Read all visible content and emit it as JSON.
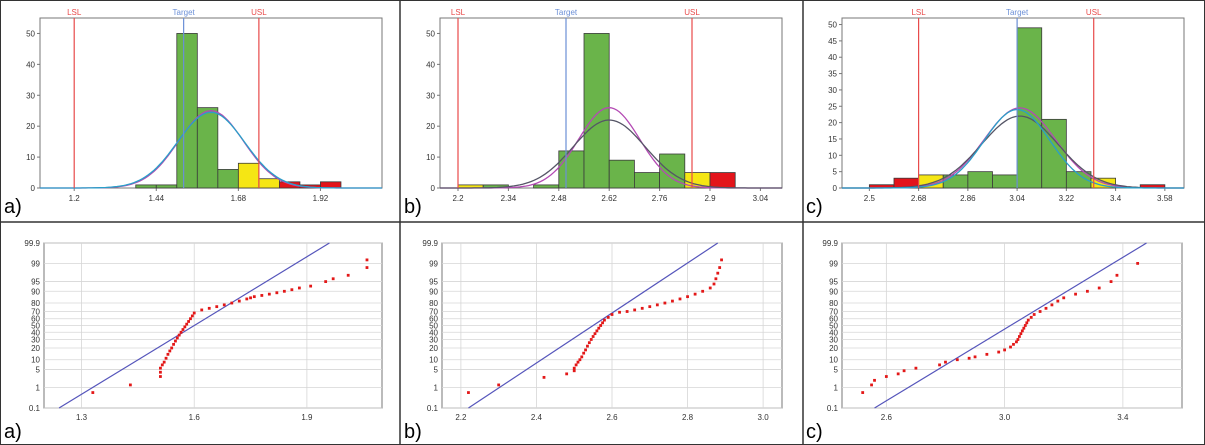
{
  "colors": {
    "ok": "#6ab44a",
    "warn": "#f5e614",
    "bad": "#e3141b",
    "limit_line": "#e84a4a",
    "target_line": "#6b8fd6",
    "fit_purple": "#b44ab4",
    "fit_gray": "#555566",
    "fit_teal": "#2a9fc8",
    "prob_line": "#5555bb",
    "prob_point": "#e31818"
  },
  "panel_labels": [
    "a)",
    "b)",
    "c)",
    "a)",
    "b)",
    "c)"
  ],
  "chart_data": [
    {
      "type": "bar",
      "panel": "a)",
      "xlim": [
        1.1,
        2.1
      ],
      "ylim": [
        0,
        55
      ],
      "x_ticks": [
        1.2,
        1.44,
        1.68,
        1.92
      ],
      "x_tick_labels": [
        "1.2",
        "1.44",
        "1.68",
        "1.92"
      ],
      "y_ticks": [
        0,
        10,
        20,
        30,
        40,
        50
      ],
      "y_tick_labels": [
        "0",
        "10",
        "20",
        "30",
        "40",
        "50"
      ],
      "bin_width": 0.06,
      "bins": [
        {
          "x": 1.38,
          "value": 1,
          "zone": "ok"
        },
        {
          "x": 1.44,
          "value": 1,
          "zone": "ok"
        },
        {
          "x": 1.5,
          "value": 50,
          "zone": "ok"
        },
        {
          "x": 1.56,
          "value": 26,
          "zone": "ok"
        },
        {
          "x": 1.62,
          "value": 6,
          "zone": "ok"
        },
        {
          "x": 1.68,
          "value": 8,
          "zone": "warn"
        },
        {
          "x": 1.74,
          "value": 3,
          "zone": "warn"
        },
        {
          "x": 1.8,
          "value": 2,
          "zone": "bad"
        },
        {
          "x": 1.86,
          "value": 1,
          "zone": "bad"
        },
        {
          "x": 1.92,
          "value": 2,
          "zone": "bad"
        }
      ],
      "markers": [
        {
          "label": "LSL",
          "x": 1.2,
          "kind": "limit"
        },
        {
          "label": "Target",
          "x": 1.52,
          "kind": "target"
        },
        {
          "label": "USL",
          "x": 1.74,
          "kind": "limit"
        }
      ],
      "fit_curves": [
        {
          "mean": 1.6,
          "sd": 0.095,
          "peak": 25,
          "color": "fit_purple"
        },
        {
          "mean": 1.6,
          "sd": 0.098,
          "peak": 24.5,
          "color": "fit_teal"
        }
      ]
    },
    {
      "type": "bar",
      "panel": "b)",
      "xlim": [
        2.15,
        3.1
      ],
      "ylim": [
        0,
        55
      ],
      "x_ticks": [
        2.2,
        2.34,
        2.48,
        2.62,
        2.76,
        2.9,
        3.04
      ],
      "x_tick_labels": [
        "2.2",
        "2.34",
        "2.48",
        "2.62",
        "2.76",
        "2.9",
        "3.04"
      ],
      "y_ticks": [
        0,
        10,
        20,
        30,
        40,
        50
      ],
      "y_tick_labels": [
        "0",
        "10",
        "20",
        "30",
        "40",
        "50"
      ],
      "bin_width": 0.07,
      "bins": [
        {
          "x": 2.2,
          "value": 1,
          "zone": "warn"
        },
        {
          "x": 2.27,
          "value": 1,
          "zone": "ok"
        },
        {
          "x": 2.41,
          "value": 1,
          "zone": "ok"
        },
        {
          "x": 2.48,
          "value": 12,
          "zone": "ok"
        },
        {
          "x": 2.55,
          "value": 50,
          "zone": "ok"
        },
        {
          "x": 2.62,
          "value": 9,
          "zone": "ok"
        },
        {
          "x": 2.69,
          "value": 5,
          "zone": "ok"
        },
        {
          "x": 2.76,
          "value": 11,
          "zone": "ok"
        },
        {
          "x": 2.83,
          "value": 5,
          "zone": "warn"
        },
        {
          "x": 2.9,
          "value": 5,
          "zone": "bad"
        }
      ],
      "markers": [
        {
          "label": "LSL",
          "x": 2.2,
          "kind": "limit"
        },
        {
          "label": "Target",
          "x": 2.5,
          "kind": "target"
        },
        {
          "label": "USL",
          "x": 2.85,
          "kind": "limit"
        }
      ],
      "fit_curves": [
        {
          "mean": 2.62,
          "sd": 0.085,
          "peak": 26,
          "color": "fit_purple"
        },
        {
          "mean": 2.62,
          "sd": 0.1,
          "peak": 22,
          "color": "fit_gray"
        }
      ]
    },
    {
      "type": "bar",
      "panel": "c)",
      "xlim": [
        2.4,
        3.65
      ],
      "ylim": [
        0,
        52
      ],
      "x_ticks": [
        2.5,
        2.68,
        2.86,
        3.04,
        3.22,
        3.4,
        3.58
      ],
      "x_tick_labels": [
        "2.5",
        "2.68",
        "2.86",
        "3.04",
        "3.22",
        "3.4",
        "3.58"
      ],
      "y_ticks": [
        0,
        5,
        10,
        15,
        20,
        25,
        30,
        35,
        40,
        45,
        50
      ],
      "y_tick_labels": [
        "0",
        "5",
        "10",
        "15",
        "20",
        "25",
        "30",
        "35",
        "40",
        "45",
        "50"
      ],
      "bin_width": 0.09,
      "bins": [
        {
          "x": 2.5,
          "value": 1,
          "zone": "bad"
        },
        {
          "x": 2.59,
          "value": 3,
          "zone": "bad"
        },
        {
          "x": 2.68,
          "value": 4,
          "zone": "warn"
        },
        {
          "x": 2.77,
          "value": 4,
          "zone": "ok"
        },
        {
          "x": 2.86,
          "value": 5,
          "zone": "ok"
        },
        {
          "x": 2.95,
          "value": 4,
          "zone": "ok"
        },
        {
          "x": 3.04,
          "value": 49,
          "zone": "ok"
        },
        {
          "x": 3.13,
          "value": 21,
          "zone": "ok"
        },
        {
          "x": 3.22,
          "value": 5,
          "zone": "ok"
        },
        {
          "x": 3.31,
          "value": 3,
          "zone": "warn"
        },
        {
          "x": 3.49,
          "value": 1,
          "zone": "bad"
        }
      ],
      "markers": [
        {
          "label": "LSL",
          "x": 2.68,
          "kind": "limit"
        },
        {
          "label": "Target",
          "x": 3.04,
          "kind": "target"
        },
        {
          "label": "USL",
          "x": 3.32,
          "kind": "limit"
        }
      ],
      "fit_curves": [
        {
          "mean": 3.05,
          "sd": 0.13,
          "peak": 24.5,
          "color": "fit_purple"
        },
        {
          "mean": 3.05,
          "sd": 0.14,
          "peak": 22,
          "color": "fit_gray"
        },
        {
          "mean": 3.04,
          "sd": 0.12,
          "peak": 24,
          "color": "fit_teal"
        }
      ]
    },
    {
      "type": "scatter",
      "panel": "a)",
      "y_scale": "normal-probability",
      "xlim": [
        1.2,
        2.1
      ],
      "x_ticks": [
        1.3,
        1.6,
        1.9
      ],
      "x_tick_labels": [
        "1.3",
        "1.6",
        "1.9"
      ],
      "y_ticks": [
        0.1,
        1,
        5,
        10,
        20,
        30,
        40,
        50,
        60,
        70,
        80,
        90,
        95,
        99,
        99.9
      ],
      "y_tick_labels": [
        "0.1",
        "1",
        "5",
        "10",
        "20",
        "30",
        "40",
        "50",
        "60",
        "70",
        "80",
        "90",
        "95",
        "99",
        "99.9"
      ],
      "fit_line": [
        [
          1.24,
          0.1
        ],
        [
          1.96,
          99.9
        ]
      ],
      "points": [
        [
          1.33,
          0.6
        ],
        [
          1.43,
          1.3
        ],
        [
          1.51,
          2.8
        ],
        [
          1.51,
          4
        ],
        [
          1.51,
          5.5
        ],
        [
          1.515,
          7
        ],
        [
          1.52,
          8.5
        ],
        [
          1.525,
          11
        ],
        [
          1.53,
          14
        ],
        [
          1.535,
          17
        ],
        [
          1.54,
          20
        ],
        [
          1.545,
          24
        ],
        [
          1.55,
          28
        ],
        [
          1.555,
          32
        ],
        [
          1.56,
          36
        ],
        [
          1.565,
          40
        ],
        [
          1.57,
          44
        ],
        [
          1.575,
          48
        ],
        [
          1.58,
          52
        ],
        [
          1.585,
          56
        ],
        [
          1.59,
          60
        ],
        [
          1.595,
          64
        ],
        [
          1.6,
          68
        ],
        [
          1.62,
          72
        ],
        [
          1.64,
          74
        ],
        [
          1.66,
          76
        ],
        [
          1.68,
          78
        ],
        [
          1.7,
          80
        ],
        [
          1.72,
          82
        ],
        [
          1.74,
          84
        ],
        [
          1.75,
          85
        ],
        [
          1.76,
          86
        ],
        [
          1.78,
          87
        ],
        [
          1.8,
          88
        ],
        [
          1.82,
          89
        ],
        [
          1.84,
          90
        ],
        [
          1.86,
          91
        ],
        [
          1.88,
          92
        ],
        [
          1.91,
          93
        ],
        [
          1.95,
          95
        ],
        [
          1.97,
          96
        ],
        [
          2.01,
          97
        ],
        [
          2.06,
          98.5
        ],
        [
          2.06,
          99.3
        ]
      ]
    },
    {
      "type": "scatter",
      "panel": "b)",
      "y_scale": "normal-probability",
      "xlim": [
        2.15,
        3.05
      ],
      "x_ticks": [
        2.2,
        2.4,
        2.6,
        2.8,
        3.0
      ],
      "x_tick_labels": [
        "2.2",
        "2.4",
        "2.6",
        "2.8",
        "3.0"
      ],
      "y_ticks": [
        0.1,
        1,
        5,
        10,
        20,
        30,
        40,
        50,
        60,
        70,
        80,
        90,
        95,
        99,
        99.9
      ],
      "y_tick_labels": [
        "0.1",
        "1",
        "5",
        "10",
        "20",
        "30",
        "40",
        "50",
        "60",
        "70",
        "80",
        "90",
        "95",
        "99",
        "99.9"
      ],
      "fit_line": [
        [
          2.22,
          0.1
        ],
        [
          2.88,
          99.9
        ]
      ],
      "points": [
        [
          2.22,
          0.6
        ],
        [
          2.3,
          1.3
        ],
        [
          2.42,
          2.6
        ],
        [
          2.48,
          3.5
        ],
        [
          2.5,
          4.5
        ],
        [
          2.5,
          5.5
        ],
        [
          2.505,
          7
        ],
        [
          2.51,
          8.5
        ],
        [
          2.515,
          10
        ],
        [
          2.52,
          12
        ],
        [
          2.525,
          15
        ],
        [
          2.53,
          18
        ],
        [
          2.535,
          22
        ],
        [
          2.54,
          26
        ],
        [
          2.545,
          30
        ],
        [
          2.55,
          34
        ],
        [
          2.555,
          38
        ],
        [
          2.56,
          42
        ],
        [
          2.565,
          46
        ],
        [
          2.57,
          50
        ],
        [
          2.575,
          54
        ],
        [
          2.58,
          58
        ],
        [
          2.59,
          62
        ],
        [
          2.6,
          66
        ],
        [
          2.62,
          69
        ],
        [
          2.64,
          70
        ],
        [
          2.66,
          72
        ],
        [
          2.68,
          74
        ],
        [
          2.7,
          76
        ],
        [
          2.72,
          78
        ],
        [
          2.74,
          80
        ],
        [
          2.76,
          82
        ],
        [
          2.78,
          84
        ],
        [
          2.8,
          86
        ],
        [
          2.82,
          88
        ],
        [
          2.84,
          90
        ],
        [
          2.86,
          92
        ],
        [
          2.87,
          94
        ],
        [
          2.875,
          96
        ],
        [
          2.88,
          97.5
        ],
        [
          2.885,
          98.5
        ],
        [
          2.89,
          99.3
        ]
      ]
    },
    {
      "type": "scatter",
      "panel": "c)",
      "y_scale": "normal-probability",
      "xlim": [
        2.45,
        3.6
      ],
      "x_ticks": [
        2.6,
        3.0,
        3.4
      ],
      "x_tick_labels": [
        "2.6",
        "3.0",
        "3.4"
      ],
      "y_ticks": [
        0.1,
        1,
        5,
        10,
        20,
        30,
        40,
        50,
        60,
        70,
        80,
        90,
        95,
        99,
        99.9
      ],
      "y_tick_labels": [
        "0.1",
        "1",
        "5",
        "10",
        "20",
        "30",
        "40",
        "50",
        "60",
        "70",
        "80",
        "90",
        "95",
        "99",
        "99.9"
      ],
      "fit_line": [
        [
          2.56,
          0.1
        ],
        [
          3.48,
          99.9
        ]
      ],
      "points": [
        [
          2.52,
          0.6
        ],
        [
          2.55,
          1.3
        ],
        [
          2.56,
          2
        ],
        [
          2.6,
          2.8
        ],
        [
          2.64,
          3.5
        ],
        [
          2.66,
          4.5
        ],
        [
          2.7,
          5.5
        ],
        [
          2.78,
          7
        ],
        [
          2.8,
          8.5
        ],
        [
          2.84,
          10
        ],
        [
          2.88,
          11
        ],
        [
          2.9,
          12
        ],
        [
          2.94,
          14
        ],
        [
          2.98,
          16
        ],
        [
          3.0,
          18
        ],
        [
          3.02,
          21
        ],
        [
          3.03,
          24
        ],
        [
          3.04,
          27
        ],
        [
          3.045,
          30
        ],
        [
          3.05,
          34
        ],
        [
          3.055,
          38
        ],
        [
          3.06,
          42
        ],
        [
          3.065,
          46
        ],
        [
          3.07,
          50
        ],
        [
          3.075,
          54
        ],
        [
          3.08,
          58
        ],
        [
          3.09,
          62
        ],
        [
          3.1,
          66
        ],
        [
          3.12,
          70
        ],
        [
          3.14,
          74
        ],
        [
          3.16,
          78
        ],
        [
          3.18,
          82
        ],
        [
          3.2,
          85
        ],
        [
          3.24,
          88
        ],
        [
          3.28,
          90
        ],
        [
          3.32,
          92
        ],
        [
          3.36,
          95
        ],
        [
          3.38,
          97
        ],
        [
          3.45,
          99
        ]
      ]
    }
  ]
}
